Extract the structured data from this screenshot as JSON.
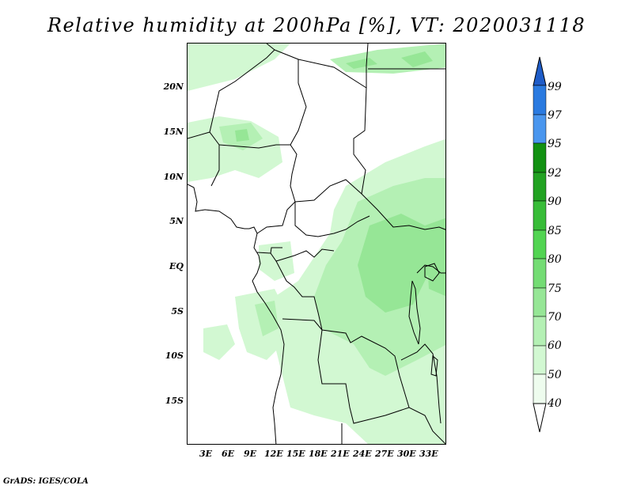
{
  "title": "Relative humidity at 200hPa [%], VT: 2020031118",
  "credit": "GrADS: IGES/COLA",
  "lat_labels": [
    "20N",
    "15N",
    "10N",
    "5N",
    "EQ",
    "5S",
    "10S",
    "15S"
  ],
  "lon_labels": [
    "3E",
    "6E",
    "9E",
    "12E",
    "15E",
    "18E",
    "21E",
    "24E",
    "27E",
    "30E",
    "33E"
  ],
  "colorbar": {
    "labels": [
      "99",
      "97",
      "95",
      "92",
      "90",
      "85",
      "80",
      "75",
      "70",
      "60",
      "50",
      "40"
    ],
    "colors": {
      "above_99": "#1e5cc8",
      "97_99": "#2a7ae0",
      "95_97": "#4a96ee",
      "92_95": "#129112",
      "90_92": "#22a222",
      "85_90": "#38bc38",
      "80_85": "#52d452",
      "75_80": "#74dc74",
      "70_75": "#96e696",
      "60_70": "#b4f0b4",
      "50_60": "#d2f8d2",
      "40_50": "#eefcee",
      "below_40": "#ffffff"
    }
  }
}
